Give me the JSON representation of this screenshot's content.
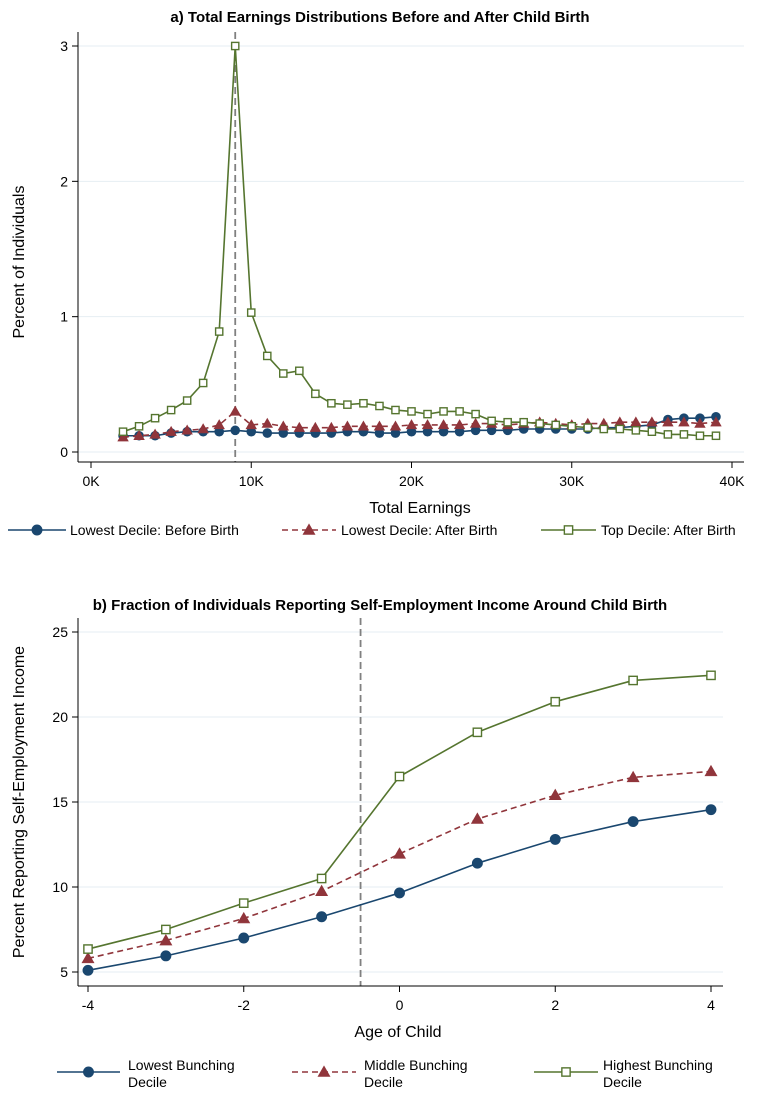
{
  "colors": {
    "navy": "#1a476f",
    "maroon": "#90353b",
    "green": "#55752f",
    "grid": "#e6eef3",
    "refline": "#808080"
  },
  "chart_data": [
    {
      "type": "line",
      "title": "a) Total Earnings Distributions Before and After Child Birth",
      "xlabel": "Total Earnings",
      "ylabel": "Percent of Individuals",
      "xlim": [
        0,
        40000
      ],
      "ylim": [
        0,
        3
      ],
      "xticks": [
        0,
        10000,
        20000,
        30000,
        40000
      ],
      "xtick_labels": [
        "0K",
        "10K",
        "20K",
        "30K",
        "40K"
      ],
      "yticks": [
        0,
        1,
        2,
        3
      ],
      "ytick_labels": [
        "0",
        "1",
        "2",
        "3"
      ],
      "grid": true,
      "reference_line_x": 9000,
      "legend_position": "bottom",
      "x": [
        2000,
        3000,
        4000,
        5000,
        6000,
        7000,
        8000,
        9000,
        10000,
        11000,
        12000,
        13000,
        14000,
        15000,
        16000,
        17000,
        18000,
        19000,
        20000,
        21000,
        22000,
        23000,
        24000,
        25000,
        26000,
        27000,
        28000,
        29000,
        30000,
        31000,
        32000,
        33000,
        34000,
        35000,
        36000,
        37000,
        38000,
        39000
      ],
      "series": [
        {
          "name": "Lowest Decile: Before Birth",
          "marker": "circle",
          "line": "solid",
          "color": "#1a476f",
          "values": [
            0.12,
            0.12,
            0.12,
            0.14,
            0.15,
            0.15,
            0.15,
            0.16,
            0.15,
            0.14,
            0.14,
            0.14,
            0.14,
            0.14,
            0.15,
            0.15,
            0.14,
            0.14,
            0.15,
            0.15,
            0.15,
            0.15,
            0.16,
            0.16,
            0.16,
            0.17,
            0.17,
            0.17,
            0.17,
            0.17,
            0.18,
            0.18,
            0.19,
            0.2,
            0.24,
            0.25,
            0.25,
            0.26
          ]
        },
        {
          "name": "Lowest Decile: After Birth",
          "marker": "triangle",
          "line": "dashed",
          "color": "#90353b",
          "values": [
            0.11,
            0.12,
            0.13,
            0.15,
            0.16,
            0.17,
            0.2,
            0.3,
            0.2,
            0.21,
            0.19,
            0.18,
            0.18,
            0.18,
            0.19,
            0.19,
            0.19,
            0.19,
            0.2,
            0.2,
            0.2,
            0.2,
            0.21,
            0.21,
            0.2,
            0.21,
            0.22,
            0.21,
            0.2,
            0.21,
            0.21,
            0.22,
            0.22,
            0.22,
            0.22,
            0.22,
            0.21,
            0.22
          ]
        },
        {
          "name": "Top Decile: After Birth",
          "marker": "square-hollow",
          "line": "solid",
          "color": "#55752f",
          "values": [
            0.15,
            0.19,
            0.25,
            0.31,
            0.38,
            0.51,
            0.89,
            3.0,
            1.03,
            0.71,
            0.58,
            0.6,
            0.43,
            0.36,
            0.35,
            0.36,
            0.34,
            0.31,
            0.3,
            0.28,
            0.3,
            0.3,
            0.28,
            0.23,
            0.22,
            0.22,
            0.21,
            0.2,
            0.19,
            0.18,
            0.17,
            0.17,
            0.16,
            0.15,
            0.13,
            0.13,
            0.12,
            0.12
          ]
        }
      ]
    },
    {
      "type": "line",
      "title": "b) Fraction of Individuals Reporting Self-Employment Income Around Child Birth",
      "xlabel": "Age of Child",
      "ylabel": "Percent Reporting Self-Employment Income",
      "xlim": [
        -4,
        4
      ],
      "ylim": [
        5,
        25
      ],
      "xticks": [
        -4,
        -2,
        0,
        2,
        4
      ],
      "xtick_labels": [
        "-4",
        "-2",
        "0",
        "2",
        "4"
      ],
      "yticks": [
        5,
        10,
        15,
        20,
        25
      ],
      "ytick_labels": [
        "5",
        "10",
        "15",
        "20",
        "25"
      ],
      "grid": true,
      "reference_line_x": -0.5,
      "legend_position": "bottom",
      "x": [
        -4,
        -3,
        -2,
        -1,
        0,
        1,
        2,
        3,
        4
      ],
      "series": [
        {
          "name": "Lowest Bunching Decile",
          "name_lines": [
            "Lowest Bunching",
            "Decile"
          ],
          "marker": "circle",
          "line": "solid",
          "color": "#1a476f",
          "values": [
            5.1,
            5.95,
            7.0,
            8.25,
            9.65,
            11.4,
            12.8,
            13.85,
            14.55
          ]
        },
        {
          "name": "Middle Bunching Decile",
          "name_lines": [
            "Middle Bunching",
            "Decile"
          ],
          "marker": "triangle",
          "line": "dashed",
          "color": "#90353b",
          "values": [
            5.8,
            6.85,
            8.15,
            9.75,
            11.95,
            14.0,
            15.4,
            16.45,
            16.8
          ]
        },
        {
          "name": "Highest Bunching Decile",
          "name_lines": [
            "Highest Bunching",
            "Decile"
          ],
          "marker": "square-hollow",
          "line": "solid",
          "color": "#55752f",
          "values": [
            6.35,
            7.5,
            9.05,
            10.5,
            16.5,
            19.1,
            20.9,
            22.15,
            22.45
          ]
        }
      ]
    }
  ]
}
